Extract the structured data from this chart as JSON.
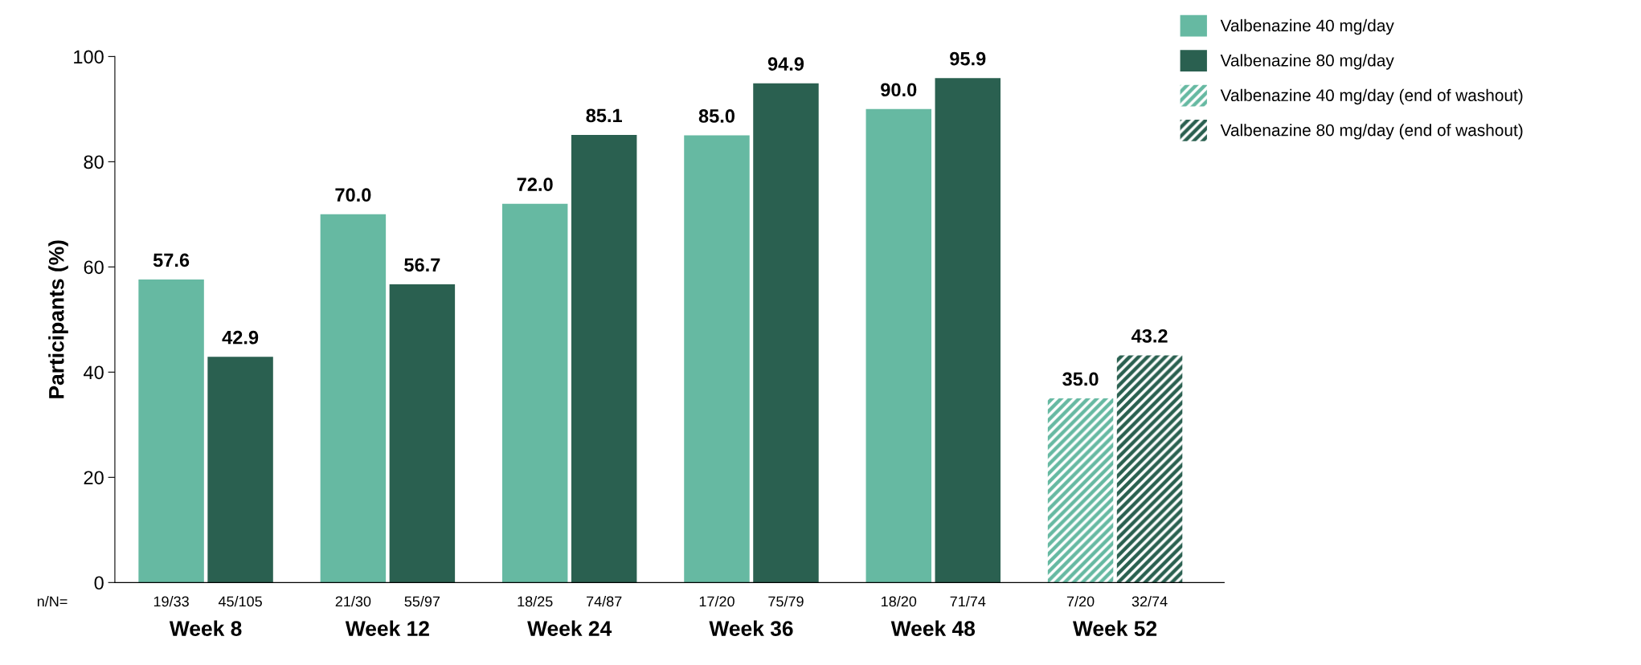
{
  "chart_data": {
    "type": "bar",
    "ylabel": "Participants (%)",
    "categories": [
      "Week 8",
      "Week 12",
      "Week 24",
      "Week 36",
      "Week 48",
      "Week 52"
    ],
    "series": [
      {
        "name": "Valbenazine 40 mg/day",
        "color": "#66b9a2",
        "values": [
          57.6,
          70.0,
          72.0,
          85.0,
          90.0,
          null
        ],
        "value_labels": [
          "57.6",
          "70.0",
          "72.0",
          "85.0",
          "90.0",
          null
        ]
      },
      {
        "name": "Valbenazine 80 mg/day",
        "color": "#2a6050",
        "values": [
          42.9,
          56.7,
          85.1,
          94.9,
          95.9,
          null
        ],
        "value_labels": [
          "42.9",
          "56.7",
          "85.1",
          "94.9",
          "95.9",
          null
        ]
      },
      {
        "name": "Valbenazine 40 mg/day (end of washout)",
        "color": "#66b9a2",
        "values": [
          null,
          null,
          null,
          null,
          null,
          35.0
        ],
        "value_labels": [
          null,
          null,
          null,
          null,
          null,
          "35.0"
        ]
      },
      {
        "name": "Valbenazine 80 mg/day (end of washout)",
        "color": "#2a6050",
        "values": [
          null,
          null,
          null,
          null,
          null,
          43.2
        ],
        "value_labels": [
          null,
          null,
          null,
          null,
          null,
          "43.2"
        ]
      }
    ],
    "ylim": [
      0,
      100
    ],
    "yticks": [
      0,
      20,
      40,
      60,
      80,
      100
    ],
    "grid": false,
    "legend": "top right",
    "annotations": [
      "n/N=",
      "19/33",
      "45/105",
      "21/30",
      "55/97",
      "18/25",
      "74/87",
      "17/20",
      "75/79",
      "18/20",
      "71/74",
      "7/20",
      "32/74"
    ]
  }
}
